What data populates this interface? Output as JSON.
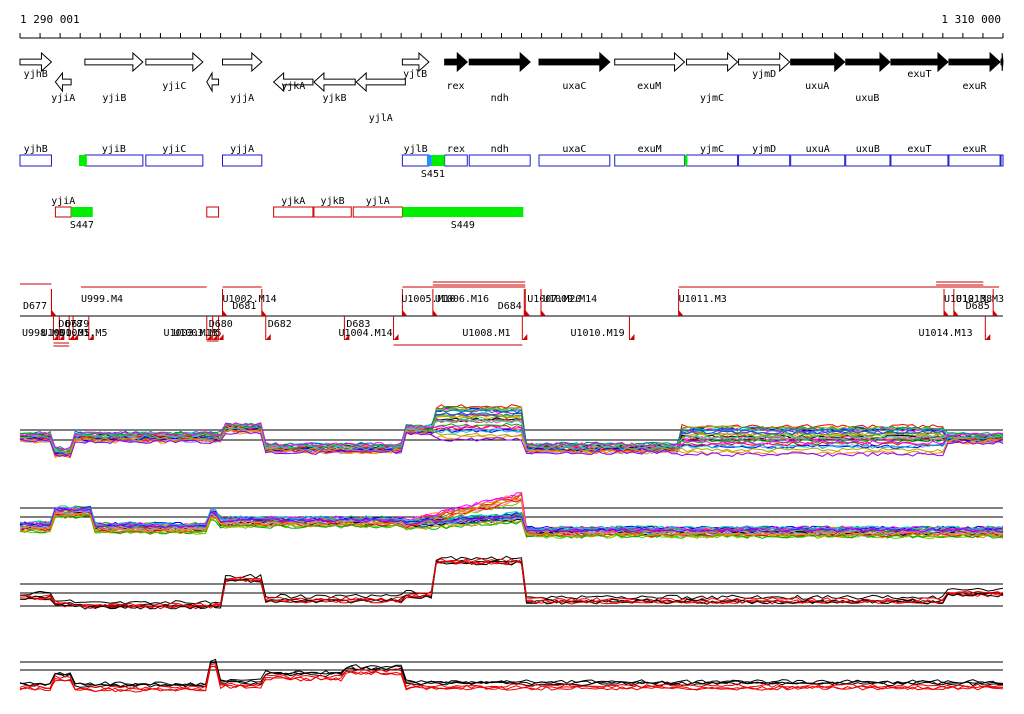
{
  "ruler": {
    "start_label": "1 290 001",
    "end_label": "1 310 000"
  },
  "colors": {
    "strand_fill": "#000000",
    "outline_blue": "#1a1acd",
    "outline_red": "#cc0000",
    "highlight_green": "#00ee00",
    "highlight_blue": "#1e90ff",
    "profile_black": "#000000",
    "profile_red": "#ee0000"
  },
  "genes_forward": [
    {
      "name": "yjhB",
      "x0": 0,
      "x1": 3.2,
      "filled": false
    },
    {
      "name": "yjiB",
      "x0": 6.6,
      "x1": 12.5,
      "filled": false
    },
    {
      "name": "yjiC",
      "x0": 12.8,
      "x1": 18.6,
      "filled": false
    },
    {
      "name": "yjjA",
      "x0": 20.6,
      "x1": 24.6,
      "filled": false
    },
    {
      "name": "yjlB",
      "x0": 38.9,
      "x1": 41.6,
      "filled": false
    },
    {
      "name": "rex",
      "x0": 43.2,
      "x1": 45.5,
      "filled": true
    },
    {
      "name": "ndh",
      "x0": 45.7,
      "x1": 51.9,
      "filled": true
    },
    {
      "name": "uxaC",
      "x0": 52.8,
      "x1": 60.0,
      "filled": true
    },
    {
      "name": "exuM",
      "x0": 60.5,
      "x1": 67.6,
      "filled": false
    },
    {
      "name": "yjmC",
      "x0": 67.8,
      "x1": 73.0,
      "filled": false
    },
    {
      "name": "yjmD",
      "x0": 73.1,
      "x1": 78.3,
      "filled": false
    },
    {
      "name": "uxuA",
      "x0": 78.4,
      "x1": 83.9,
      "filled": true
    },
    {
      "name": "uxuB",
      "x0": 84.0,
      "x1": 88.5,
      "filled": true
    },
    {
      "name": "exuT",
      "x0": 88.6,
      "x1": 94.4,
      "filled": true
    },
    {
      "name": "exuR",
      "x0": 94.5,
      "x1": 99.7,
      "filled": true
    },
    {
      "name": "",
      "x0": 99.8,
      "x1": 100.0,
      "filled": true
    }
  ],
  "genes_reverse": [
    {
      "name": "yjiA",
      "x0": 3.6,
      "x1": 5.2
    },
    {
      "name": "",
      "x0": 19.0,
      "x1": 20.2
    },
    {
      "name": "yjkA",
      "x0": 25.8,
      "x1": 29.8
    },
    {
      "name": "yjkB",
      "x0": 29.9,
      "x1": 34.1
    },
    {
      "name": "yjlA",
      "x0": 34.2,
      "x1": 39.2
    }
  ],
  "gene_labels_top": [
    {
      "text": "yjhB",
      "x": 1.6,
      "row": "above"
    },
    {
      "text": "yjiA",
      "x": 4.4,
      "row": "below"
    },
    {
      "text": "yjiB",
      "x": 9.6,
      "row": "below"
    },
    {
      "text": "yjiC",
      "x": 15.7,
      "row": "mid"
    },
    {
      "text": "yjjA",
      "x": 22.6,
      "row": "below"
    },
    {
      "text": "yjkA",
      "x": 27.8,
      "row": "mid"
    },
    {
      "text": "yjkB",
      "x": 32.0,
      "row": "below"
    },
    {
      "text": "yjlA",
      "x": 36.7,
      "row": "low"
    },
    {
      "text": "yjlB",
      "x": 40.2,
      "row": "above"
    },
    {
      "text": "rex",
      "x": 44.3,
      "row": "mid"
    },
    {
      "text": "ndh",
      "x": 48.8,
      "row": "below"
    },
    {
      "text": "uxaC",
      "x": 56.4,
      "row": "mid"
    },
    {
      "text": "exuM",
      "x": 64.0,
      "row": "mid"
    },
    {
      "text": "yjmC",
      "x": 70.4,
      "row": "below"
    },
    {
      "text": "yjmD",
      "x": 75.7,
      "row": "above"
    },
    {
      "text": "uxuA",
      "x": 81.1,
      "row": "mid"
    },
    {
      "text": "uxuB",
      "x": 86.2,
      "row": "below"
    },
    {
      "text": "exuT",
      "x": 91.5,
      "row": "above"
    },
    {
      "text": "exuR",
      "x": 97.1,
      "row": "mid"
    }
  ],
  "annot_forward": [
    {
      "name": "yjhB",
      "x0": 0,
      "x1": 3.2
    },
    {
      "name": "yjiB",
      "x0": 6.6,
      "x1": 12.5
    },
    {
      "name": "yjiC",
      "x0": 12.8,
      "x1": 18.6
    },
    {
      "name": "yjjA",
      "x0": 20.6,
      "x1": 24.6
    },
    {
      "name": "yjlB",
      "x0": 38.9,
      "x1": 41.6
    },
    {
      "name": "rex",
      "x0": 43.2,
      "x1": 45.5
    },
    {
      "name": "ndh",
      "x0": 45.7,
      "x1": 51.9
    },
    {
      "name": "uxaC",
      "x0": 52.8,
      "x1": 60.0
    },
    {
      "name": "exuM",
      "x0": 60.5,
      "x1": 67.6
    },
    {
      "name": "yjmC",
      "x0": 67.8,
      "x1": 73.0
    },
    {
      "name": "yjmD",
      "x0": 73.1,
      "x1": 78.3
    },
    {
      "name": "uxuA",
      "x0": 78.4,
      "x1": 83.9
    },
    {
      "name": "uxuB",
      "x0": 84.0,
      "x1": 88.5
    },
    {
      "name": "exuT",
      "x0": 88.6,
      "x1": 94.4
    },
    {
      "name": "exuR",
      "x0": 94.5,
      "x1": 99.7
    },
    {
      "name": "",
      "x0": 99.8,
      "x1": 100.0
    }
  ],
  "annot_forward_features": [
    {
      "label": "",
      "x0": 6.0,
      "x1": 6.8,
      "color": "green"
    },
    {
      "label": "S451",
      "x0": 41.4,
      "x1": 41.9,
      "color": "blue"
    },
    {
      "label": "",
      "x0": 41.9,
      "x1": 43.2,
      "color": "green"
    },
    {
      "label": "",
      "x0": 67.6,
      "x1": 67.9,
      "color": "green"
    }
  ],
  "annot_reverse": [
    {
      "name": "yjiA",
      "x0": 3.6,
      "x1": 5.2
    },
    {
      "name": "",
      "x0": 19.0,
      "x1": 20.2
    },
    {
      "name": "yjkA",
      "x0": 25.8,
      "x1": 29.8
    },
    {
      "name": "yjkB",
      "x0": 29.9,
      "x1": 33.7
    },
    {
      "name": "yjlA",
      "x0": 33.9,
      "x1": 38.9
    }
  ],
  "annot_reverse_features": [
    {
      "label": "S447",
      "x0": 5.2,
      "x1": 7.4,
      "color": "green"
    },
    {
      "label": "S449",
      "x0": 38.9,
      "x1": 51.2,
      "color": "green"
    }
  ],
  "segments": {
    "upper": [
      {
        "label": "D677",
        "x": 0.3,
        "x_mark": 3.2,
        "dy": 0
      },
      {
        "label": "U999.M4",
        "x": 6.2,
        "x_mark": 3.2,
        "dy": -1
      },
      {
        "label": "D681",
        "x": 21.6,
        "x_mark": 24.6,
        "dy": 0
      },
      {
        "label": "U1002.M14",
        "x": 20.6,
        "x_mark": 20.6,
        "dy": -1
      },
      {
        "label": "U1005.M10",
        "x": 38.8,
        "x_mark": 38.9,
        "dy": -1
      },
      {
        "label": "U1006.M16",
        "x": 42.2,
        "x_mark": 42.0,
        "dy": -1
      },
      {
        "label": "D684",
        "x": 48.6,
        "x_mark": 51.3,
        "dy": 0
      },
      {
        "label": "U1007.M20",
        "x": 51.6,
        "x_mark": 51.4,
        "dy": -1
      },
      {
        "label": "U1009.M14",
        "x": 53.2,
        "x_mark": 53.0,
        "dy": -1
      },
      {
        "label": "U1011.M3",
        "x": 67.0,
        "x_mark": 67.0,
        "dy": -1
      },
      {
        "label": "U1012.M8",
        "x": 94.0,
        "x_mark": 94.0,
        "dy": -1
      },
      {
        "label": "U1013.M3",
        "x": 95.2,
        "x_mark": 95.0,
        "dy": -1
      },
      {
        "label": "D685",
        "x": 96.2,
        "x_mark": 99.0,
        "dy": 0
      }
    ],
    "lower": [
      {
        "label": "U998.M8",
        "x": 0.2,
        "x_mark": 3.4,
        "dy": 0
      },
      {
        "label": "U1000.M5",
        "x": 2.2,
        "x_mark": 4.0,
        "dy": 0
      },
      {
        "label": "D678",
        "x": 3.9,
        "x_mark": 5.0,
        "dy": -1
      },
      {
        "label": "D679",
        "x": 4.6,
        "x_mark": 5.4,
        "dy": -1
      },
      {
        "label": "U1001.M5",
        "x": 4.0,
        "x_mark": 7.0,
        "dy": 0
      },
      {
        "label": "U1003.M13",
        "x": 14.6,
        "x_mark": 19.0,
        "dy": 0
      },
      {
        "label": "U1003.M5",
        "x": 15.6,
        "x_mark": 19.6,
        "dy": 0
      },
      {
        "label": "D680",
        "x": 19.2,
        "x_mark": 20.2,
        "dy": -1
      },
      {
        "label": "D682",
        "x": 25.2,
        "x_mark": 25.0,
        "dy": -1
      },
      {
        "label": "D683",
        "x": 33.2,
        "x_mark": 33.0,
        "dy": -1
      },
      {
        "label": "U1004.M14",
        "x": 32.4,
        "x_mark": 38.0,
        "dy": 0
      },
      {
        "label": "U1008.M1",
        "x": 45.0,
        "x_mark": 51.1,
        "dy": 0
      },
      {
        "label": "U1010.M19",
        "x": 56.0,
        "x_mark": 62.0,
        "dy": 0
      },
      {
        "label": "U1014.M13",
        "x": 91.4,
        "x_mark": 98.2,
        "dy": 0
      }
    ]
  }
}
